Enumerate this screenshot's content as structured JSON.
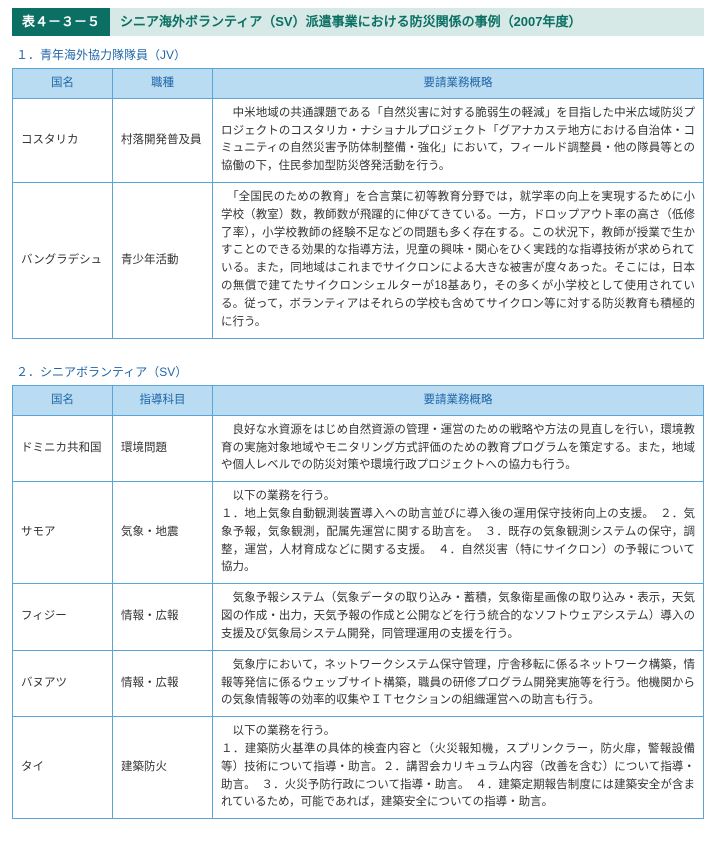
{
  "colors": {
    "brand_dark": "#0b6f63",
    "brand_light": "#d6e9e6",
    "header_bg": "#b9dcf2",
    "header_text": "#2066a8",
    "border": "#5aa4d6",
    "body_text": "#333333",
    "page_bg": "#ffffff"
  },
  "title_tag": "表４－３－５",
  "title_text": "シニア海外ボランティア（SV）派遣事業における防災関係の事例（2007年度）",
  "section1": {
    "label": "１．青年海外協力隊隊員（JV）",
    "headers": {
      "c1": "国名",
      "c2": "職種",
      "c3": "要請業務概略"
    },
    "rows": [
      {
        "country": "コスタリカ",
        "role": "村落開発普及員",
        "desc": "　中米地域の共通課題である「自然災害に対する脆弱生の軽減」を目指した中米広域防災プロジェクトのコスタリカ・ナショナルプロジェクト「グアナカステ地方における自治体・コミュニティの自然災害予防体制整備・強化」において，フィールド調整員・他の隊員等との協働の下，住民参加型防災啓発活動を行う。"
      },
      {
        "country": "バングラデシュ",
        "role": "青少年活動",
        "desc": "　「全国民のための教育」を合言葉に初等教育分野では，就学率の向上を実現するために小学校（教室）数，教師数が飛躍的に伸びてきている。一方，ドロップアウト率の高さ（低修了率），小学校教師の経験不足などの問題も多く存在する。この状況下，教師が授業で生かすことのできる効果的な指導方法，児童の興味・関心をひく実践的な指導技術が求められている。また，同地域はこれまでサイクロンによる大きな被害が度々あった。そこには，日本の無償で建てたサイクロンシェルターが18基あり，その多くが小学校として使用されている。従って，ボランティアはそれらの学校も含めてサイクロン等に対する防災教育も積極的に行う。"
      }
    ]
  },
  "section2": {
    "label": "２．シニアボランティア（SV）",
    "headers": {
      "c1": "国名",
      "c2": "指導科目",
      "c3": "要請業務概略"
    },
    "rows": [
      {
        "country": "ドミニカ共和国",
        "role": "環境問題",
        "desc": "　良好な水資源をはじめ自然資源の管理・運営のための戦略や方法の見直しを行い，環境教育の実施対象地域やモニタリング方式評価のための教育プログラムを策定する。また，地域や個人レベルでの防災対策や環境行政プロジェクトへの協力も行う。"
      },
      {
        "country": "サモア",
        "role": "気象・地震",
        "desc": "　以下の業務を行う。\n１．地上気象自動観測装置導入への助言並びに導入後の運用保守技術向上の支援。　２．気象予報，気象観測，配属先運営に関する助言を。　３．既存の気象観測システムの保守，調整，運営，人材育成などに関する支援。　４．自然災害（特にサイクロン）の予報について協力。"
      },
      {
        "country": "フィジー",
        "role": "情報・広報",
        "desc": "　気象予報システム（気象データの取り込み・蓄積，気象衛星画像の取り込み・表示，天気図の作成・出力，天気予報の作成と公開などを行う統合的なソフトウェアシステム）導入の支援及び気象局システム開発，同管理運用の支援を行う。"
      },
      {
        "country": "バヌアツ",
        "role": "情報・広報",
        "desc": "　気象庁において，ネットワークシステム保守管理，庁舎移転に係るネットワーク構築，情報等発信に係るウェッブサイト構築，職員の研修プログラム開発実施等を行う。他機関からの気象情報等の効率的収集やＩＴセクションの組織運営への助言も行う。"
      },
      {
        "country": "タイ",
        "role": "建築防火",
        "desc": "　以下の業務を行う。\n１．建築防火基準の具体的検査内容と（火災報知機，スプリンクラー，防火扉，警報設備等）技術について指導・助言。２．講習会カリキュラム内容（改善を含む）について指導・助言。　３．火災予防行政について指導・助言。　４．建築定期報告制度には建築安全が含まれているため，可能であれば，建築安全についての指導・助言。"
      }
    ]
  }
}
